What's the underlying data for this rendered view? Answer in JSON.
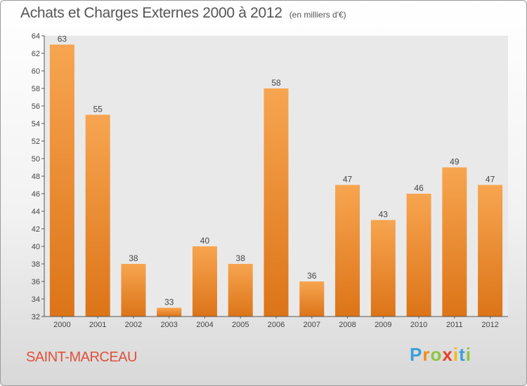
{
  "chart_data": {
    "type": "bar",
    "title": "Achats et Charges Externes 2000 à 2012",
    "subtitle": "(en milliers d'€)",
    "categories": [
      "2000",
      "2001",
      "2002",
      "2003",
      "2004",
      "2005",
      "2006",
      "2007",
      "2008",
      "2009",
      "2010",
      "2011",
      "2012"
    ],
    "values": [
      63,
      55,
      38,
      33,
      40,
      38,
      58,
      36,
      47,
      43,
      46,
      49,
      47
    ],
    "xlabel": "",
    "ylabel": "",
    "ylim": [
      32,
      64
    ],
    "yticks": [
      32,
      34,
      36,
      38,
      40,
      42,
      44,
      46,
      48,
      50,
      52,
      54,
      56,
      58,
      60,
      62,
      64
    ],
    "grid": false,
    "bar_color": "#f0922e"
  },
  "footer": {
    "commune": "SAINT-MARCEAU",
    "logo": [
      "P",
      "r",
      "o",
      "x",
      "i",
      "t",
      "i"
    ],
    "logo_colors": [
      "#3d9fd8",
      "#f28c1e",
      "#8cc63f",
      "#e8402a",
      "#f2b81e",
      "#3d9fd8",
      "#8cc63f"
    ]
  }
}
